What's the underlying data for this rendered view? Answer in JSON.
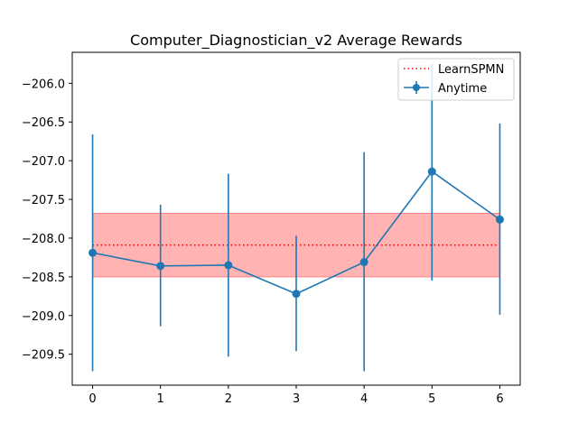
{
  "chart_data": {
    "type": "line",
    "title": "Computer_Diagnostician_v2 Average Rewards",
    "xlabel": "",
    "ylabel": "",
    "xlim": [
      -0.3,
      6.3
    ],
    "ylim": [
      -209.9,
      -205.6
    ],
    "x_ticks": [
      0,
      1,
      2,
      3,
      4,
      5,
      6
    ],
    "y_ticks": [
      -209.5,
      -209.0,
      -208.5,
      -208.0,
      -207.5,
      -207.0,
      -206.5,
      -206.0
    ],
    "y_tick_labels": [
      "−209.5",
      "−209.0",
      "−208.5",
      "−208.0",
      "−207.5",
      "−207.0",
      "−206.5",
      "−206.0"
    ],
    "grid": false,
    "legend_position": "top-right",
    "series": [
      {
        "name": "Anytime",
        "style": "line-with-markers-and-errorbars",
        "color": "#1f77b4",
        "x": [
          0,
          1,
          2,
          3,
          4,
          5,
          6
        ],
        "y": [
          -208.19,
          -208.36,
          -208.35,
          -208.72,
          -208.31,
          -207.14,
          -207.76
        ],
        "yerr_low": [
          -209.72,
          -209.14,
          -209.53,
          -209.46,
          -209.72,
          -208.55,
          -208.99
        ],
        "yerr_high": [
          -206.66,
          -207.57,
          -207.17,
          -207.97,
          -206.89,
          -205.75,
          -206.52
        ]
      },
      {
        "name": "LearnSPMN",
        "style": "dotted-line-with-band",
        "color": "#ff0000",
        "band_color": "#ffb3b3",
        "x": [
          0,
          6
        ],
        "y": [
          -208.09,
          -208.09
        ],
        "band_low": -208.5,
        "band_high": -207.68
      }
    ]
  }
}
